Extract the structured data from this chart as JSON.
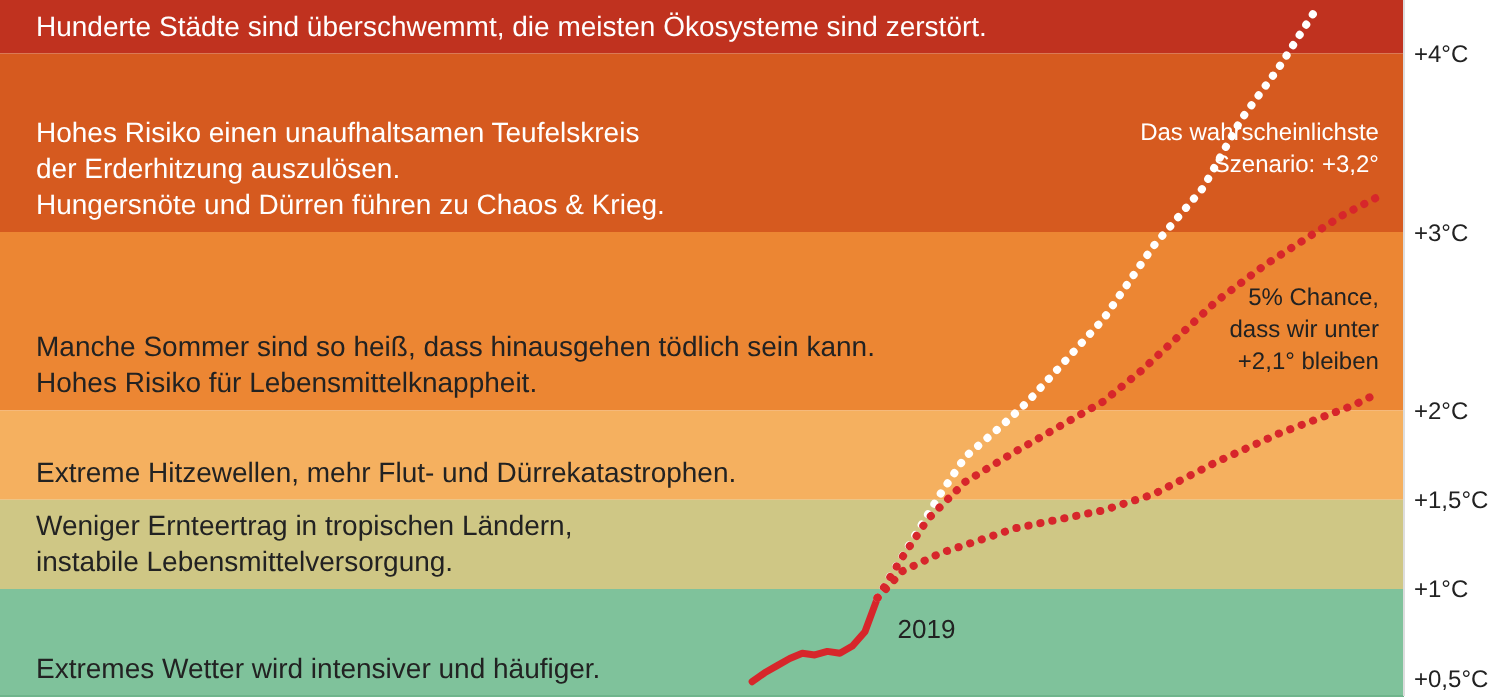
{
  "chart_data": {
    "type": "line",
    "categories": [
      null,
      null,
      null,
      null,
      null,
      null,
      null,
      null,
      null,
      null,
      null,
      null,
      null,
      null,
      null,
      null,
      null,
      null,
      null,
      null,
      null,
      null,
      null,
      null,
      null,
      null,
      null,
      null,
      null,
      null,
      null,
      null,
      null,
      null,
      null,
      null,
      null,
      null,
      null,
      null,
      null,
      null,
      null,
      null,
      null,
      null,
      null,
      null,
      null,
      null,
      null,
      null,
      null,
      null,
      null,
      null,
      null,
      null,
      null,
      null,
      null,
      null,
      null,
      null,
      null,
      null,
      null,
      null,
      null,
      null,
      null,
      null,
      null,
      null,
      null,
      null,
      null,
      null,
      null,
      null,
      null,
      null,
      null,
      null,
      null,
      null,
      null,
      null,
      null,
      null,
      null,
      null,
      null,
      null,
      null,
      null,
      null,
      null,
      null,
      null,
      null,
      null,
      null,
      null,
      null,
      null,
      null,
      null,
      null,
      null,
      null,
      null,
      null
    ],
    "ylim": [
      0.4,
      4.3
    ],
    "yticks": [
      {
        "value": 0.5,
        "label": "+0,5°C"
      },
      {
        "value": 1,
        "label": "+1°C"
      },
      {
        "value": 1.5,
        "label": "+1,5°C"
      },
      {
        "value": 2,
        "label": "+2°C"
      },
      {
        "value": 3,
        "label": "+3°C"
      },
      {
        "value": 4,
        "label": "+4°C"
      }
    ],
    "series": [
      {
        "color": "#d7262b",
        "line_style": "solid",
        "values": [
          null,
          null,
          null,
          null,
          null,
          null,
          null,
          null,
          null,
          null,
          null,
          null,
          null,
          null,
          null,
          null,
          null,
          null,
          null,
          null,
          null,
          null,
          null,
          null,
          null,
          null,
          null,
          null,
          null,
          null,
          null,
          null,
          null,
          null,
          null,
          null,
          null,
          null,
          null,
          null,
          null,
          null,
          null,
          null,
          null,
          null,
          null,
          null,
          null,
          null,
          null,
          null,
          null,
          null,
          null,
          null,
          null,
          null,
          null,
          null,
          0.48,
          0.53,
          0.57,
          0.61,
          0.64,
          0.63,
          0.65,
          0.64,
          0.68,
          0.76,
          0.95,
          null,
          null,
          null,
          null,
          null,
          null,
          null,
          null,
          null,
          null,
          null,
          null,
          null,
          null,
          null,
          null,
          null,
          null,
          null,
          null,
          null,
          null,
          null,
          null,
          null,
          null,
          null,
          null,
          null,
          null,
          null,
          null,
          null,
          null,
          null,
          null,
          null,
          null,
          null,
          null,
          null,
          null
        ]
      },
      {
        "color": "#ffffff",
        "line_style": "dotted",
        "values": [
          null,
          null,
          null,
          null,
          null,
          null,
          null,
          null,
          null,
          null,
          null,
          null,
          null,
          null,
          null,
          null,
          null,
          null,
          null,
          null,
          null,
          null,
          null,
          null,
          null,
          null,
          null,
          null,
          null,
          null,
          null,
          null,
          null,
          null,
          null,
          null,
          null,
          null,
          null,
          null,
          null,
          null,
          null,
          null,
          null,
          null,
          null,
          null,
          null,
          null,
          null,
          null,
          null,
          null,
          null,
          null,
          null,
          null,
          null,
          null,
          null,
          null,
          null,
          null,
          null,
          null,
          null,
          null,
          null,
          null,
          0.95,
          1.07,
          null,
          1.3,
          null,
          1.53,
          null,
          1.74,
          null,
          null,
          1.92,
          null,
          2.05,
          null,
          null,
          null,
          null,
          null,
          2.51,
          null,
          null,
          null,
          2.92,
          null,
          null,
          null,
          3.25,
          null,
          null,
          3.63,
          null,
          null,
          3.92,
          null,
          4.14,
          4.25,
          null,
          null,
          null,
          null,
          null,
          null,
          null
        ]
      },
      {
        "name": "Das wahrscheinlichste\nSzenario: +3,2°",
        "color": "#d7262b",
        "line_style": "dotted",
        "values": [
          null,
          null,
          null,
          null,
          null,
          null,
          null,
          null,
          null,
          null,
          null,
          null,
          null,
          null,
          null,
          null,
          null,
          null,
          null,
          null,
          null,
          null,
          null,
          null,
          null,
          null,
          null,
          null,
          null,
          null,
          null,
          null,
          null,
          null,
          null,
          null,
          null,
          null,
          null,
          null,
          null,
          null,
          null,
          null,
          null,
          null,
          null,
          null,
          null,
          null,
          null,
          null,
          null,
          null,
          null,
          null,
          null,
          null,
          null,
          null,
          null,
          null,
          null,
          null,
          null,
          null,
          null,
          null,
          null,
          null,
          0.95,
          null,
          1.18,
          null,
          1.39,
          null,
          null,
          1.6,
          null,
          null,
          null,
          1.77,
          null,
          null,
          null,
          null,
          null,
          null,
          2.05,
          null,
          null,
          2.22,
          null,
          null,
          null,
          null,
          null,
          2.61,
          null,
          null,
          null,
          2.82,
          null,
          null,
          null,
          null,
          null,
          3.09,
          null,
          null,
          3.2,
          null,
          null
        ]
      },
      {
        "name": "5% Chance,\ndass wir unter\n+2,1° bleiben",
        "color": "#d7262b",
        "line_style": "dotted",
        "values": [
          null,
          null,
          null,
          null,
          null,
          null,
          null,
          null,
          null,
          null,
          null,
          null,
          null,
          null,
          null,
          null,
          null,
          null,
          null,
          null,
          null,
          null,
          null,
          null,
          null,
          null,
          null,
          null,
          null,
          null,
          null,
          null,
          null,
          null,
          null,
          null,
          null,
          null,
          null,
          null,
          null,
          null,
          null,
          null,
          null,
          null,
          null,
          null,
          null,
          null,
          null,
          null,
          null,
          null,
          null,
          null,
          null,
          null,
          null,
          null,
          null,
          null,
          null,
          null,
          null,
          null,
          null,
          null,
          null,
          null,
          0.95,
          null,
          1.1,
          null,
          null,
          1.2,
          null,
          null,
          null,
          null,
          null,
          1.34,
          null,
          null,
          null,
          null,
          null,
          null,
          1.44,
          null,
          null,
          null,
          1.53,
          null,
          null,
          null,
          null,
          1.71,
          null,
          null,
          null,
          null,
          1.87,
          null,
          null,
          null,
          null,
          null,
          2.03,
          null,
          2.1,
          null,
          null
        ]
      }
    ],
    "bands": [
      {
        "axis": "y",
        "from": 4,
        "to": 4.3,
        "color": "#c0321f",
        "label": "Hunderte Städte sind überschwemmt, die meisten Ökosysteme sind zerstört."
      },
      {
        "axis": "y",
        "from": 3,
        "to": 4,
        "color": "#d65a1f",
        "label": "Hohes Risiko einen unaufhaltsamen Teufelskreis\nder Erderhitzung auszulösen.\nHungersnöte und Dürren führen zu Chaos & Krieg."
      },
      {
        "axis": "y",
        "from": 2,
        "to": 3,
        "color": "#ec8633",
        "label": "Manche Sommer sind so heiß, dass hinausgehen tödlich sein kann.\nHohes Risiko für Lebensmittelknappheit."
      },
      {
        "axis": "y",
        "from": 1.5,
        "to": 2,
        "color": "#f5b05f",
        "label": "Extreme Hitzewellen, mehr Flut- und Dürrekatastrophen."
      },
      {
        "axis": "y",
        "from": 1,
        "to": 1.5,
        "color": "#cfc785",
        "label": "Weniger Ernteertrag in tropischen Ländern,\ninstabile Lebensmittelversorgung."
      },
      {
        "axis": "y",
        "from": 0.4,
        "to": 1,
        "color": "#7fc29b",
        "label": "Extremes Wetter wird intensiver und häufiger."
      }
    ],
    "annotations": [
      {
        "text": "2019",
        "y": 0.95
      }
    ]
  }
}
